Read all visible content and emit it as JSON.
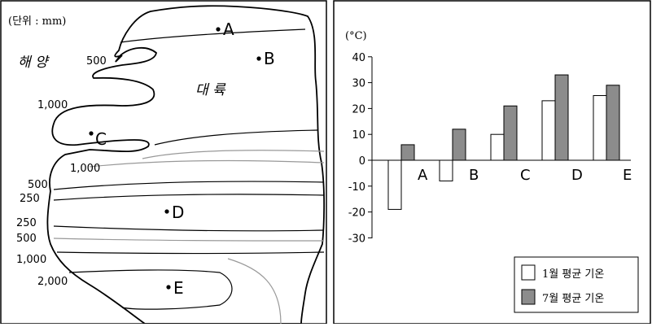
{
  "map": {
    "unit_label": "(단위 : mm)",
    "ocean_label": "해 양",
    "continent_label": "대 륙",
    "isohyets": [
      "500",
      "1,000",
      "1,000",
      "500",
      "250",
      "250",
      "500",
      "1,000",
      "2,000"
    ],
    "points": [
      "A",
      "B",
      "C",
      "D",
      "E"
    ]
  },
  "chart_data": {
    "type": "bar",
    "ylabel": "(°C)",
    "ylim": [
      -30,
      40
    ],
    "yticks": [
      40,
      30,
      20,
      10,
      0,
      -10,
      -20,
      -30
    ],
    "categories": [
      "A",
      "B",
      "C",
      "D",
      "E"
    ],
    "series": [
      {
        "name": "1월 평균 기온",
        "values": [
          -19,
          -8,
          10,
          23,
          25
        ],
        "color": "#ffffff"
      },
      {
        "name": "7월 평균 기온",
        "values": [
          6,
          12,
          21,
          33,
          29
        ],
        "color": "#8c8c8c"
      }
    ],
    "legend_position": "bottom-right"
  }
}
